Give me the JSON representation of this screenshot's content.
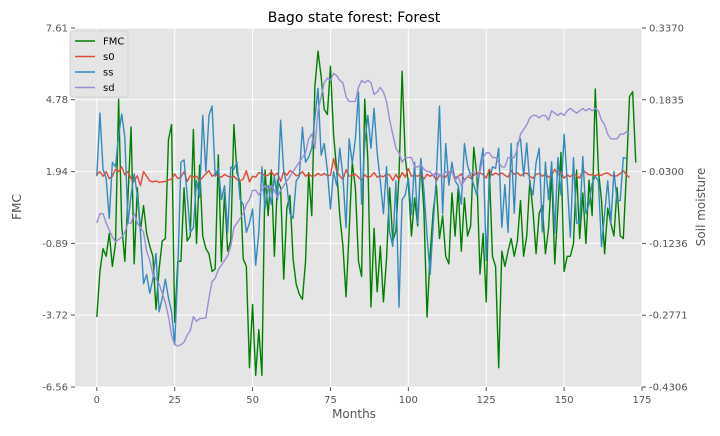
{
  "chart_data": {
    "type": "line",
    "title": "Bago state forest: Forest",
    "xlabel": "Months",
    "ylabel": "FMC",
    "y2label": "Soil moisture",
    "xlim": [
      -7,
      175
    ],
    "ylim": [
      -6.56,
      7.61
    ],
    "y2lim": [
      -0.4306,
      0.337
    ],
    "xticks": [
      "0",
      "25",
      "50",
      "75",
      "100",
      "125",
      "150",
      "175"
    ],
    "xtick_values": [
      0,
      25,
      50,
      75,
      100,
      125,
      150,
      175
    ],
    "yticks": [
      "-6.56",
      "-3.72",
      "-0.89",
      "1.94",
      "4.78",
      "7.61"
    ],
    "ytick_values": [
      -6.56,
      -3.72,
      -0.89,
      1.94,
      4.78,
      7.61
    ],
    "y2ticks": [
      "-0.4306",
      "-0.2771",
      "-0.1236",
      "0.0300",
      "0.1835",
      "0.3370"
    ],
    "y2tick_values": [
      -0.4306,
      -0.2771,
      -0.1236,
      0.03,
      0.1835,
      0.337
    ],
    "grid": true,
    "legend_position": "top-left",
    "series": [
      {
        "name": "FMC",
        "axis": "left",
        "color": "#008000",
        "x_start": 0,
        "values": [
          -3.8,
          -2.0,
          -1.1,
          -1.4,
          -0.5,
          -1.8,
          -0.9,
          4.8,
          -0.2,
          -1.6,
          0.9,
          3.7,
          -1.7,
          1.3,
          -0.4,
          0.6,
          -0.5,
          -1.0,
          -1.4,
          -3.5,
          -1.9,
          -0.8,
          -0.7,
          3.2,
          3.8,
          -4.0,
          -1.6,
          -1.6,
          1.3,
          -0.8,
          -0.6,
          3.6,
          -0.9,
          2.2,
          -0.6,
          -1.1,
          -1.3,
          -2.0,
          -1.9,
          2.6,
          -1.6,
          1.1,
          -1.2,
          -0.8,
          3.8,
          1.9,
          1.5,
          -1.5,
          -1.8,
          -5.8,
          -3.3,
          -6.1,
          -4.3,
          -6.1,
          2.0,
          0.2,
          2.0,
          -1.4,
          1.6,
          1.3,
          -2.3,
          0.5,
          1.0,
          -1.5,
          -2.5,
          -2.9,
          -3.1,
          -1.6,
          1.9,
          0.2,
          5.3,
          6.7,
          5.7,
          4.4,
          4.2,
          6.1,
          3.4,
          2.0,
          0.2,
          -1.0,
          -3.0,
          -0.4,
          2.3,
          1.3,
          -1.6,
          -2.2,
          4.8,
          2.4,
          -3.4,
          -0.3,
          -2.8,
          -1.0,
          -3.2,
          -1.5,
          1.3,
          -0.8,
          -0.4,
          1.8,
          5.9,
          2.5,
          1.5,
          -0.6,
          0.9,
          -0.2,
          2.3,
          0.4,
          -3.8,
          -1.3,
          0.4,
          1.4,
          -0.7,
          0.2,
          -1.4,
          -1.7,
          1.1,
          -0.6,
          1.3,
          -1.2,
          0.9,
          -0.6,
          -0.2,
          2.9,
          1.8,
          -2.1,
          -0.5,
          -3.2,
          2.0,
          -1.4,
          -1.8,
          -5.8,
          -1.2,
          -1.8,
          -1.2,
          -0.7,
          -1.4,
          -0.8,
          0.8,
          -1.4,
          -0.6,
          1.6,
          0.4,
          -1.3,
          0.3,
          0.6,
          -1.3,
          -0.3,
          1.9,
          -1.7,
          0.5,
          2.7,
          -2.0,
          -1.4,
          -1.4,
          -0.9,
          2.0,
          -0.7,
          1.1,
          -0.9,
          1.6,
          0.2,
          5.2,
          2.0,
          0.8,
          -1.3,
          0.5,
          -0.1,
          -0.6,
          1.3,
          -0.6,
          -0.7,
          1.9,
          4.9,
          5.1,
          2.3
        ]
      },
      {
        "name": "s0",
        "axis": "right",
        "color": "#e24a33",
        "x_start": 0,
        "values": [
          0.023,
          0.03,
          0.02,
          0.03,
          0.015,
          0.02,
          0.035,
          0.03,
          0.04,
          0.023,
          0.03,
          0.015,
          0.01,
          0.021,
          0.0,
          0.03,
          0.02,
          0.01,
          0.008,
          0.01,
          0.007,
          0.008,
          0.009,
          0.012,
          0.014,
          0.025,
          0.015,
          0.018,
          0.03,
          0.009,
          0.021,
          0.019,
          0.02,
          0.01,
          0.018,
          0.025,
          0.032,
          0.02,
          0.025,
          0.02,
          0.018,
          0.024,
          0.02,
          0.018,
          0.02,
          0.013,
          0.01,
          0.014,
          0.032,
          0.008,
          0.02,
          0.018,
          0.028,
          0.026,
          0.021,
          0.022,
          0.03,
          0.021,
          0.027,
          0.009,
          0.03,
          0.022,
          0.032,
          0.028,
          0.021,
          0.023,
          0.03,
          0.02,
          0.025,
          0.02,
          0.021,
          0.026,
          0.022,
          0.026,
          0.021,
          0.022,
          0.058,
          0.03,
          0.021,
          0.013,
          0.034,
          0.02,
          0.022,
          0.024,
          0.018,
          0.011,
          0.023,
          0.017,
          0.02,
          0.028,
          0.018,
          0.021,
          0.019,
          0.025,
          0.023,
          0.011,
          0.024,
          0.013,
          0.028,
          0.018,
          0.036,
          0.02,
          0.022,
          0.02,
          0.025,
          0.014,
          0.024,
          0.02,
          0.024,
          0.01,
          0.023,
          0.019,
          0.018,
          0.028,
          0.031,
          0.017,
          0.02,
          0.025,
          0.012,
          0.019,
          0.016,
          0.022,
          0.028,
          0.027,
          0.024,
          0.016,
          0.035,
          0.022,
          0.027,
          0.023,
          0.027,
          0.022,
          0.018,
          0.032,
          0.024,
          0.028,
          0.021,
          0.025,
          0.027,
          0.02,
          0.016,
          0.024,
          0.026,
          0.02,
          0.025,
          0.018,
          0.022,
          0.035,
          0.023,
          0.028,
          0.016,
          0.023,
          0.019,
          0.025,
          0.021,
          0.016,
          0.033,
          0.028,
          0.023,
          0.023,
          0.021,
          0.024,
          0.022,
          0.026,
          0.027,
          0.022,
          0.02,
          0.021,
          0.026,
          0.032,
          0.023,
          0.017
        ]
      },
      {
        "name": "ss",
        "axis": "right",
        "color": "#348abd",
        "x_start": 0,
        "values": [
          0.02,
          0.155,
          0.035,
          0.015,
          -0.07,
          0.05,
          0.04,
          0.108,
          0.153,
          0.103,
          -0.08,
          -0.02,
          0.025,
          -0.02,
          -0.1,
          -0.21,
          -0.19,
          -0.23,
          -0.2,
          -0.145,
          -0.27,
          -0.24,
          -0.2,
          -0.24,
          -0.27,
          -0.34,
          -0.18,
          0.05,
          0.055,
          -0.02,
          -0.1,
          -0.09,
          0.011,
          -0.025,
          0.15,
          0.03,
          0.15,
          0.17,
          0.02,
          0.038,
          -0.03,
          0.0,
          -0.1,
          0.04,
          0.035,
          0.05,
          -0.03,
          -0.04,
          -0.1,
          -0.08,
          -0.05,
          -0.17,
          -0.1,
          0.04,
          -0.05,
          0.0,
          -0.04,
          0.02,
          -0.03,
          0.14,
          0.031,
          0.0,
          -0.06,
          -0.07,
          0.01,
          0.02,
          0.125,
          0.05,
          0.061,
          0.08,
          0.145,
          0.208,
          0.065,
          0.09,
          0.033,
          -0.05,
          0.03,
          0.0,
          0.08,
          0.02,
          -0.09,
          0.1,
          0.048,
          0.1,
          0.2,
          -0.04,
          0.09,
          0.15,
          0.08,
          0.165,
          0.07,
          0.01,
          -0.06,
          0.041,
          -0.1,
          -0.13,
          0.01,
          -0.26,
          -0.03,
          -0.02,
          0.016,
          -0.062,
          0.05,
          -0.08,
          0.058,
          -0.01,
          -0.107,
          -0.19,
          -0.08,
          0.02,
          0.17,
          -0.06,
          0.09,
          0.001,
          0.05,
          0.01,
          0.0,
          -0.04,
          0.09,
          0.043,
          0.022,
          0.001,
          -0.021,
          0.04,
          0.08,
          -0.16,
          0.01,
          0.04,
          0.037,
          0.08,
          -0.089,
          0.002,
          -0.1,
          0.09,
          -0.059,
          0.09,
          0.1,
          0.02,
          0.091,
          0.003,
          -0.02,
          0.049,
          0.08,
          -0.099,
          0.05,
          -0.03,
          0.051,
          -0.101,
          0.06,
          -0.02,
          0.11,
          0.01,
          -0.11,
          0.06,
          -0.08,
          -0.079,
          0.062,
          -0.06,
          -0.04,
          0.005,
          0.02,
          0.01,
          -0.13,
          -0.06,
          0.01,
          -0.08,
          0.03,
          -0.032,
          -0.032,
          0.06,
          0.058
        ]
      },
      {
        "name": "sd",
        "axis": "right",
        "color": "#988ed5",
        "x_start": 0,
        "values": [
          -0.08,
          -0.06,
          -0.06,
          -0.08,
          -0.095,
          -0.11,
          -0.12,
          -0.115,
          -0.11,
          -0.1,
          -0.08,
          -0.08,
          -0.06,
          -0.08,
          -0.09,
          -0.1,
          -0.14,
          -0.16,
          -0.19,
          -0.2,
          -0.21,
          -0.23,
          -0.25,
          -0.28,
          -0.32,
          -0.34,
          -0.343,
          -0.34,
          -0.335,
          -0.32,
          -0.31,
          -0.28,
          -0.29,
          -0.284,
          -0.284,
          -0.283,
          -0.24,
          -0.205,
          -0.198,
          -0.18,
          -0.17,
          -0.16,
          -0.15,
          -0.13,
          -0.09,
          -0.08,
          -0.07,
          -0.06,
          -0.04,
          -0.03,
          -0.01,
          -0.01,
          -0.02,
          -0.01,
          0.0,
          -0.01,
          0.0,
          -0.01,
          -0.025,
          -0.01,
          0.0,
          0.01,
          0.02,
          0.03,
          0.04,
          0.05,
          0.06,
          0.07,
          0.1,
          0.11,
          0.08,
          0.16,
          0.19,
          0.22,
          0.23,
          0.225,
          0.24,
          0.235,
          0.225,
          0.22,
          0.19,
          0.18,
          0.18,
          0.18,
          0.21,
          0.225,
          0.22,
          0.225,
          0.22,
          0.195,
          0.2,
          0.21,
          0.2,
          0.18,
          0.14,
          0.11,
          0.08,
          0.07,
          0.05,
          0.06,
          0.06,
          0.06,
          0.04,
          0.04,
          0.045,
          0.035,
          0.03,
          0.03,
          0.02,
          0.03,
          0.02,
          0.02,
          0.03,
          0.025,
          0.03,
          0.01,
          0.02,
          0.0,
          0.01,
          0.02,
          0.025,
          0.03,
          0.02,
          0.03,
          0.06,
          0.07,
          0.07,
          0.06,
          0.06,
          0.05,
          0.04,
          0.04,
          0.06,
          0.06,
          0.06,
          0.08,
          0.11,
          0.12,
          0.13,
          0.145,
          0.15,
          0.15,
          0.145,
          0.15,
          0.15,
          0.14,
          0.16,
          0.155,
          0.15,
          0.155,
          0.15,
          0.16,
          0.165,
          0.16,
          0.155,
          0.16,
          0.165,
          0.16,
          0.165,
          0.16,
          0.165,
          0.16,
          0.14,
          0.13,
          0.11,
          0.1,
          0.1,
          0.1,
          0.11,
          0.11,
          0.115,
          0.11
        ]
      }
    ]
  }
}
